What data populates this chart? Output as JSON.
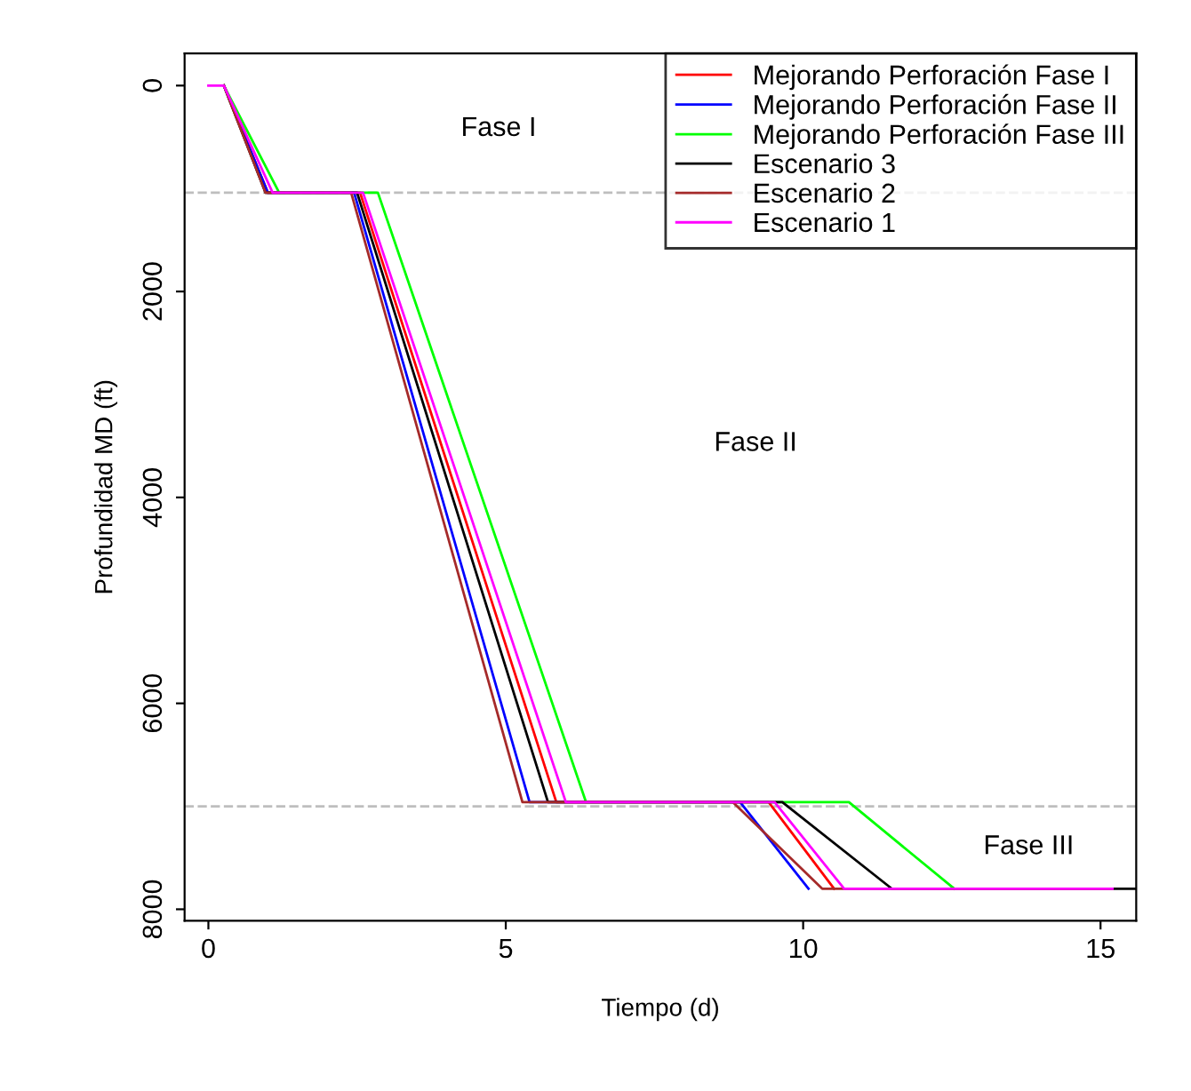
{
  "chart_data": {
    "type": "line",
    "xlabel": "Tiempo (d)",
    "ylabel": "Profundidad MD (ft)",
    "xlim": [
      -0.4,
      15.6
    ],
    "xticks": [
      0,
      5,
      10,
      15
    ],
    "ylim": [
      8112,
      -312
    ],
    "yticks": [
      0,
      2000,
      4000,
      6000,
      8000
    ],
    "grid": false,
    "legend": "top right",
    "line_style": "solid",
    "marker": "none",
    "series": [
      {
        "name": "Mejorando Perforación Fase I",
        "color": "#ff0000",
        "x": [
          0.26,
          1.0,
          2.55,
          5.85,
          9.42,
          10.52
        ],
        "values": [
          0,
          1040,
          1040,
          6960,
          6960,
          7800
        ]
      },
      {
        "name": "Mejorando Perforación Fase II",
        "color": "#0000ff",
        "x": [
          0.26,
          1.0,
          2.45,
          5.4,
          8.94,
          10.09
        ],
        "values": [
          0,
          1040,
          1040,
          6960,
          6960,
          7800
        ]
      },
      {
        "name": "Mejorando Perforación Fase III",
        "color": "#00ff00",
        "x": [
          0.26,
          1.19,
          2.85,
          6.35,
          10.77,
          12.54
        ],
        "values": [
          0,
          1040,
          1040,
          6960,
          6960,
          7800
        ]
      },
      {
        "name": "Escenario 3",
        "color": "#000000",
        "x": [
          0.26,
          0.96,
          2.5,
          5.71,
          9.65,
          11.49,
          15.6
        ],
        "values": [
          0,
          1040,
          1040,
          6960,
          6960,
          7800,
          7800
        ]
      },
      {
        "name": "Escenario 2",
        "color": "#a52a2a",
        "x": [
          0.26,
          0.96,
          2.4,
          5.28,
          8.82,
          10.32,
          15.2
        ],
        "values": [
          0,
          1040,
          1040,
          6960,
          6960,
          7800,
          7800
        ]
      },
      {
        "name": "Escenario 1",
        "color": "#ff00ff",
        "x": [
          0,
          0.26,
          1.08,
          2.6,
          6.01,
          9.52,
          10.69,
          15.2
        ],
        "values": [
          0,
          0,
          1040,
          1040,
          6960,
          6960,
          7800,
          7800
        ]
      }
    ],
    "ref_lines": [
      {
        "axis": "y",
        "value": 1040,
        "color": "#bebebe",
        "line_style": "dashed"
      },
      {
        "axis": "y",
        "value": 7000,
        "color": "#bebebe",
        "line_style": "dashed"
      }
    ],
    "annotations": [
      "Fase I",
      "Fase II",
      "Fase III"
    ]
  }
}
